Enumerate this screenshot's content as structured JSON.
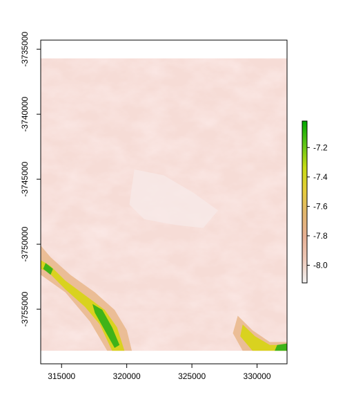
{
  "map": {
    "x_ticks": [
      {
        "value": 315000,
        "label": "315000"
      },
      {
        "value": 320000,
        "label": "320000"
      },
      {
        "value": 325000,
        "label": "325000"
      },
      {
        "value": 330000,
        "label": "330000"
      }
    ],
    "y_ticks": [
      {
        "value": -3735000,
        "label": "-3735000"
      },
      {
        "value": -3740000,
        "label": "-3740000"
      },
      {
        "value": -3745000,
        "label": "-3745000"
      },
      {
        "value": -3750000,
        "label": "-3750000"
      },
      {
        "value": -3755000,
        "label": "-3755000"
      }
    ],
    "x_range": [
      313400,
      332300
    ],
    "y_range": [
      -3759200,
      -3734300
    ],
    "raster_extent": {
      "xmin": 313400,
      "xmax": 332300,
      "ymin": -3758200,
      "ymax": -3735700
    },
    "legend": {
      "min": -8.12,
      "max": -7.02,
      "ticks": [
        {
          "value": -7.2,
          "label": "-7.2"
        },
        {
          "value": -7.4,
          "label": "-7.4"
        },
        {
          "value": -7.6,
          "label": "-7.6"
        },
        {
          "value": -7.8,
          "label": "-7.8"
        },
        {
          "value": -8.0,
          "label": "-8.0"
        }
      ],
      "colors": [
        "#f2f2f2",
        "#eec9b9",
        "#e7b094",
        "#e2b66e",
        "#e6cd3a",
        "#c6dc14",
        "#5ec416",
        "#00a600"
      ]
    }
  }
}
